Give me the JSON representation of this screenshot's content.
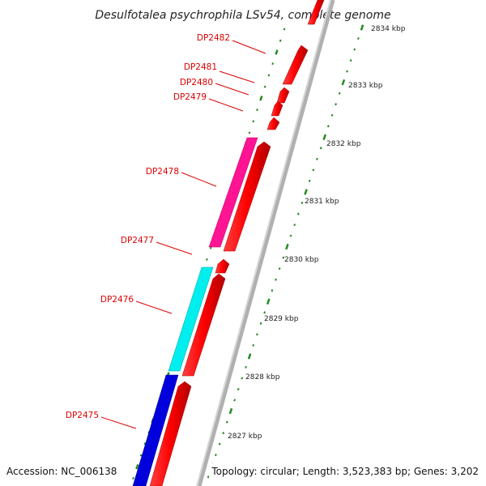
{
  "title": "Desulfotalea psychrophila LSv54, complete genome",
  "footer": {
    "accession": "Accession: NC_006138",
    "topology": "Topology: circular; Length: 3,523,383 bp; Genes: 3,202"
  },
  "colors": {
    "cds": "#ff0000",
    "highlight_pink": "#ff1493",
    "highlight_cyan": "#00eeee",
    "highlight_blue": "#0000dd",
    "label": "#dd0000",
    "tick": "#228b22",
    "backbone": "#999999"
  },
  "scale": {
    "unit": "kbp",
    "ticks": [
      {
        "label": "2834 kbp"
      },
      {
        "label": "2833 kbp"
      },
      {
        "label": "2832 kbp"
      },
      {
        "label": "2831 kbp"
      },
      {
        "label": "2830 kbp"
      },
      {
        "label": "2829 kbp"
      },
      {
        "label": "2828 kbp"
      },
      {
        "label": "2827 kbp"
      }
    ]
  },
  "genes": [
    {
      "label": "DP2482"
    },
    {
      "label": "DP2481"
    },
    {
      "label": "DP2480"
    },
    {
      "label": "DP2479"
    },
    {
      "label": "DP2478"
    },
    {
      "label": "DP2477"
    },
    {
      "label": "DP2476"
    },
    {
      "label": "DP2475"
    }
  ]
}
